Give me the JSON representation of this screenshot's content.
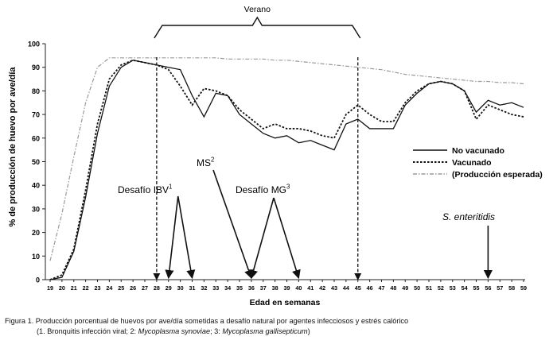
{
  "chart_data": {
    "type": "line",
    "xlabel": "Edad en semanas",
    "ylabel": "% de producción de huevo por ave/día",
    "ylim": [
      0,
      100
    ],
    "yticks": [
      0,
      10,
      20,
      30,
      40,
      50,
      60,
      70,
      80,
      90,
      100
    ],
    "xlim": [
      19,
      59
    ],
    "x": [
      19,
      20,
      21,
      22,
      23,
      24,
      25,
      26,
      27,
      28,
      29,
      30,
      31,
      32,
      33,
      34,
      35,
      36,
      37,
      38,
      39,
      40,
      41,
      42,
      43,
      44,
      45,
      46,
      47,
      48,
      49,
      50,
      51,
      52,
      53,
      54,
      55,
      56,
      57,
      58,
      59
    ],
    "grid": false,
    "legend_position": "right",
    "series": [
      {
        "name": "No vacunado",
        "style": "solid",
        "color": "#111111",
        "values": [
          0,
          1,
          12,
          35,
          62,
          82,
          90,
          93,
          92,
          91,
          90,
          89,
          78,
          69,
          79,
          78,
          70,
          66,
          62,
          60,
          61,
          58,
          59,
          57,
          55,
          66,
          68,
          64,
          64,
          64,
          74,
          79,
          83,
          84,
          83,
          80,
          71,
          76,
          74,
          75,
          73
        ]
      },
      {
        "name": "Vacunado",
        "style": "dotted",
        "color": "#111111",
        "values": [
          0,
          2,
          13,
          38,
          66,
          85,
          91,
          93,
          92,
          91,
          89,
          82,
          74,
          81,
          80,
          78,
          72,
          68,
          64,
          66,
          64,
          64,
          63,
          61,
          60,
          70,
          74,
          70,
          67,
          67,
          75,
          80,
          83,
          84,
          83,
          80,
          68,
          74,
          72,
          70,
          69
        ]
      },
      {
        "name": "(Producción esperada)",
        "style": "dashdot",
        "color": "#9a9a9a",
        "values": [
          8,
          28,
          52,
          75,
          90,
          94,
          94,
          94,
          94,
          94,
          94,
          94,
          94,
          94,
          94,
          93.5,
          93.5,
          93.5,
          93.5,
          93,
          93,
          92.5,
          92,
          91.5,
          91,
          90.5,
          90,
          89.5,
          89,
          88,
          87,
          86.5,
          86,
          85.5,
          85,
          84.5,
          84,
          84,
          83.5,
          83.5,
          83
        ]
      }
    ],
    "period": {
      "label": "Verano",
      "start": 28,
      "end": 45
    },
    "annotations": [
      {
        "label": "Desafío IBV",
        "sup": "1",
        "targets": [
          29,
          31
        ]
      },
      {
        "label": "MS",
        "sup": "2",
        "targets": [
          36
        ]
      },
      {
        "label": "Desafío MG",
        "sup": "3",
        "targets": [
          36,
          40
        ]
      },
      {
        "label": "S. enteritidis",
        "sup": "",
        "targets": [
          56
        ]
      }
    ]
  },
  "caption": {
    "line1": "Figura 1.  Producción porcentual de huevos por ave/día sometidas a desafío natural por agentes infecciosos y estrés calórico",
    "line2_a": "(1. Bronquitis infección viral; 2: ",
    "line2_b": "Mycoplasma synoviae",
    "line2_c": "; 3: ",
    "line2_d": "Mycoplasma gallisepticum",
    "line2_e": ")"
  }
}
